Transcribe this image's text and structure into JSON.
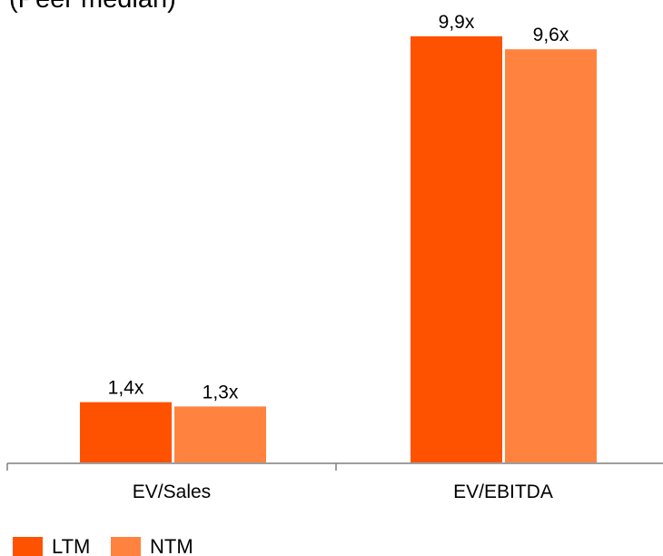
{
  "chart_data": {
    "type": "bar",
    "title": "(Peer median)",
    "categories": [
      "EV/Sales",
      "EV/EBITDA"
    ],
    "series": [
      {
        "name": "LTM",
        "values": [
          1.4,
          9.9
        ],
        "labels": [
          "1,4x",
          "9,9x"
        ],
        "color": "#FF5200"
      },
      {
        "name": "NTM",
        "values": [
          1.3,
          9.6
        ],
        "labels": [
          "1,3x",
          "9,6x"
        ],
        "color": "#FF823F"
      }
    ],
    "xlabel": "",
    "ylabel": "",
    "ylim": [
      0,
      9.9
    ],
    "grid": false,
    "legend": "bottom-left"
  }
}
